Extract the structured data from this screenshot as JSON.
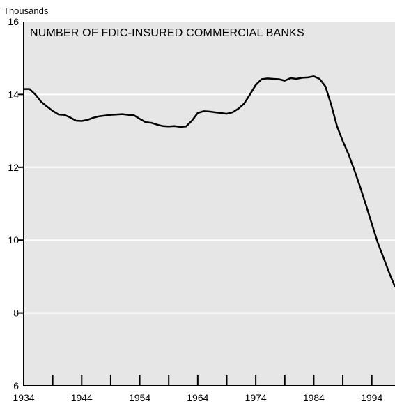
{
  "chart_data": {
    "type": "line",
    "title": "NUMBER OF FDIC-INSURED COMMERCIAL BANKS",
    "unit_label": "Thousands",
    "xlabel": "",
    "ylabel": "",
    "xlim": [
      1934,
      1998
    ],
    "ylim": [
      6,
      16
    ],
    "x_ticks": [
      1934,
      1944,
      1954,
      1964,
      1974,
      1984,
      1994
    ],
    "x_minor_ticks": [
      1939,
      1949,
      1959,
      1969,
      1979,
      1989
    ],
    "y_ticks": [
      6,
      8,
      10,
      12,
      14,
      16
    ],
    "grid": true,
    "colors": {
      "background": "#e6e6e6",
      "line": "#000000",
      "grid": "#ffffff"
    },
    "series": [
      {
        "x": [
          1934,
          1935,
          1936,
          1937,
          1938,
          1939,
          1940,
          1941,
          1942,
          1943,
          1944,
          1945,
          1946,
          1947,
          1948,
          1949,
          1950,
          1951,
          1952,
          1953,
          1954,
          1955,
          1956,
          1957,
          1958,
          1959,
          1960,
          1961,
          1962,
          1963,
          1964,
          1965,
          1966,
          1967,
          1968,
          1969,
          1970,
          1971,
          1972,
          1973,
          1974,
          1975,
          1976,
          1977,
          1978,
          1979,
          1980,
          1981,
          1982,
          1983,
          1984,
          1985,
          1986,
          1987,
          1988,
          1989,
          1990,
          1991,
          1992,
          1993,
          1994,
          1995,
          1996,
          1997,
          1998
        ],
        "values": [
          14.15,
          14.15,
          14.0,
          13.8,
          13.67,
          13.55,
          13.45,
          13.44,
          13.37,
          13.28,
          13.27,
          13.3,
          13.36,
          13.4,
          13.42,
          13.44,
          13.45,
          13.46,
          13.44,
          13.43,
          13.33,
          13.24,
          13.22,
          13.17,
          13.13,
          13.12,
          13.13,
          13.11,
          13.12,
          13.28,
          13.49,
          13.54,
          13.53,
          13.51,
          13.49,
          13.47,
          13.51,
          13.61,
          13.75,
          14.0,
          14.26,
          14.42,
          14.44,
          14.43,
          14.42,
          14.38,
          14.45,
          14.43,
          14.46,
          14.47,
          14.5,
          14.43,
          14.22,
          13.72,
          13.13,
          12.72,
          12.35,
          11.92,
          11.46,
          10.96,
          10.45,
          9.94,
          9.53,
          9.1,
          8.72
        ]
      }
    ]
  }
}
